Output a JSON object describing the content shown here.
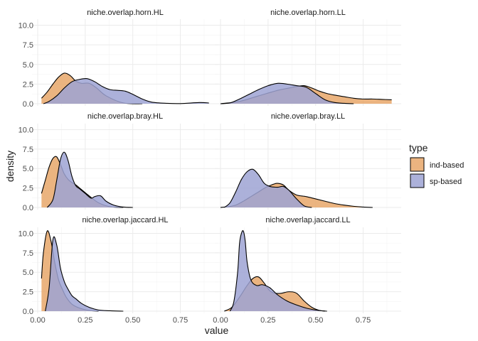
{
  "chart_data": {
    "type": "area",
    "subtype": "density-facets",
    "xlabel": "value",
    "ylabel": "density",
    "xlim": [
      0,
      0.92
    ],
    "ylim": [
      0,
      10.5
    ],
    "x_ticks": [
      "0.00",
      "0.25",
      "0.50",
      "0.75"
    ],
    "y_ticks": [
      "0.0",
      "2.5",
      "5.0",
      "7.5",
      "10.0"
    ],
    "legend": {
      "title": "type",
      "position": "right",
      "items": [
        {
          "label": "ind-based",
          "color": "#E8A76A"
        },
        {
          "label": "sp-based",
          "color": "#9EA3D4"
        }
      ]
    },
    "colors": {
      "ind-based": "#E8A76A",
      "sp-based": "#9EA3D4",
      "outline": "#000000"
    },
    "grid": true,
    "panels": [
      {
        "title": "niche.overlap.horn.HL",
        "series": [
          {
            "name": "ind-based",
            "x": [
              0.02,
              0.05,
              0.08,
              0.11,
              0.14,
              0.17,
              0.2,
              0.23,
              0.27,
              0.31,
              0.36,
              0.45,
              0.55
            ],
            "y": [
              0.7,
              1.5,
              2.5,
              3.4,
              3.9,
              3.6,
              2.9,
              2.6,
              2.6,
              2.0,
              1.0,
              0.1,
              0.0
            ]
          },
          {
            "name": "sp-based",
            "x": [
              0.03,
              0.06,
              0.1,
              0.14,
              0.18,
              0.22,
              0.26,
              0.3,
              0.34,
              0.38,
              0.42,
              0.46,
              0.5,
              0.55,
              0.6,
              0.68,
              0.75,
              0.85,
              0.9
            ],
            "y": [
              0.0,
              0.3,
              1.0,
              2.0,
              2.8,
              3.1,
              3.2,
              2.8,
              2.2,
              1.8,
              1.7,
              1.6,
              1.2,
              0.6,
              0.2,
              0.05,
              0.02,
              0.15,
              0.1
            ]
          }
        ]
      },
      {
        "title": "niche.overlap.horn.LL",
        "series": [
          {
            "name": "ind-based",
            "x": [
              0.0,
              0.1,
              0.2,
              0.3,
              0.36,
              0.4,
              0.44,
              0.48,
              0.52,
              0.56,
              0.6,
              0.65,
              0.7,
              0.75,
              0.8,
              0.85,
              0.9
            ],
            "y": [
              0.0,
              0.3,
              1.0,
              1.7,
              2.0,
              2.2,
              2.3,
              2.0,
              1.6,
              1.3,
              1.1,
              0.9,
              0.7,
              0.6,
              0.6,
              0.55,
              0.5
            ]
          },
          {
            "name": "sp-based",
            "x": [
              0.0,
              0.05,
              0.1,
              0.15,
              0.2,
              0.25,
              0.3,
              0.35,
              0.4,
              0.45,
              0.5,
              0.55,
              0.6,
              0.65,
              0.7
            ],
            "y": [
              0.0,
              0.1,
              0.6,
              1.2,
              1.8,
              2.3,
              2.6,
              2.5,
              2.3,
              2.1,
              1.3,
              0.5,
              0.15,
              0.05,
              0.0
            ]
          }
        ]
      },
      {
        "title": "niche.overlap.bray.HL",
        "series": [
          {
            "name": "ind-based",
            "x": [
              0.02,
              0.04,
              0.06,
              0.08,
              0.1,
              0.12,
              0.14,
              0.16,
              0.18,
              0.2,
              0.23,
              0.27,
              0.32,
              0.38,
              0.45
            ],
            "y": [
              1.8,
              3.5,
              5.2,
              6.3,
              6.5,
              5.5,
              4.3,
              3.6,
              3.2,
              2.9,
              2.3,
              1.5,
              0.6,
              0.1,
              0.0
            ]
          },
          {
            "name": "sp-based",
            "x": [
              0.05,
              0.08,
              0.1,
              0.12,
              0.14,
              0.16,
              0.18,
              0.2,
              0.22,
              0.25,
              0.28,
              0.3,
              0.33,
              0.36,
              0.4,
              0.45,
              0.5
            ],
            "y": [
              0.0,
              1.0,
              3.5,
              6.2,
              7.1,
              6.0,
              4.0,
              2.8,
              2.4,
              1.8,
              1.2,
              1.4,
              1.5,
              0.8,
              0.3,
              0.05,
              0.0
            ]
          }
        ]
      },
      {
        "title": "niche.overlap.bray.LL",
        "series": [
          {
            "name": "ind-based",
            "x": [
              0.0,
              0.04,
              0.08,
              0.12,
              0.16,
              0.2,
              0.24,
              0.28,
              0.3,
              0.33,
              0.36,
              0.4,
              0.45,
              0.5,
              0.55,
              0.6,
              0.65,
              0.7,
              0.75,
              0.8
            ],
            "y": [
              0.0,
              0.1,
              0.3,
              0.8,
              1.4,
              2.0,
              2.6,
              3.0,
              3.1,
              2.9,
              2.2,
              1.6,
              1.4,
              1.1,
              0.8,
              0.5,
              0.3,
              0.15,
              0.05,
              0.0
            ]
          },
          {
            "name": "sp-based",
            "x": [
              0.02,
              0.05,
              0.08,
              0.11,
              0.14,
              0.17,
              0.2,
              0.23,
              0.26,
              0.3,
              0.33,
              0.36,
              0.4,
              0.44,
              0.48
            ],
            "y": [
              0.0,
              0.6,
              2.0,
              3.6,
              4.6,
              4.9,
              4.2,
              3.1,
              2.7,
              2.6,
              2.7,
              2.2,
              1.1,
              0.2,
              0.0
            ]
          }
        ]
      },
      {
        "title": "niche.overlap.jaccard.HL",
        "series": [
          {
            "name": "ind-based",
            "x": [
              0.02,
              0.03,
              0.05,
              0.07,
              0.09,
              0.11,
              0.13,
              0.15,
              0.18,
              0.22,
              0.27,
              0.32
            ],
            "y": [
              4.2,
              7.5,
              10.3,
              9.0,
              6.2,
              4.0,
              2.8,
              1.8,
              0.9,
              0.4,
              0.1,
              0.0
            ]
          },
          {
            "name": "sp-based",
            "x": [
              0.04,
              0.06,
              0.08,
              0.1,
              0.12,
              0.14,
              0.16,
              0.18,
              0.2,
              0.23,
              0.27,
              0.32,
              0.38,
              0.45
            ],
            "y": [
              0.0,
              3.0,
              9.2,
              8.5,
              5.5,
              3.8,
              2.8,
              2.0,
              1.6,
              1.0,
              0.5,
              0.15,
              0.05,
              0.0
            ]
          }
        ]
      },
      {
        "title": "niche.overlap.jaccard.LL",
        "series": [
          {
            "name": "ind-based",
            "x": [
              0.02,
              0.06,
              0.1,
              0.14,
              0.17,
              0.2,
              0.23,
              0.26,
              0.29,
              0.32,
              0.36,
              0.4,
              0.44,
              0.48,
              0.52,
              0.56
            ],
            "y": [
              0.0,
              0.5,
              1.8,
              3.3,
              4.2,
              4.4,
              3.6,
              2.6,
              2.3,
              2.3,
              2.5,
              2.3,
              1.3,
              0.5,
              0.1,
              0.0
            ]
          },
          {
            "name": "sp-based",
            "x": [
              0.05,
              0.07,
              0.09,
              0.1,
              0.11,
              0.12,
              0.13,
              0.14,
              0.16,
              0.19,
              0.22,
              0.26,
              0.3,
              0.35,
              0.4,
              0.45,
              0.5,
              0.55
            ],
            "y": [
              0.0,
              1.2,
              5.0,
              8.7,
              10.0,
              10.3,
              9.0,
              6.3,
              4.0,
              3.3,
              3.4,
              3.0,
              2.1,
              1.3,
              0.8,
              0.4,
              0.15,
              0.0
            ]
          }
        ]
      }
    ]
  }
}
